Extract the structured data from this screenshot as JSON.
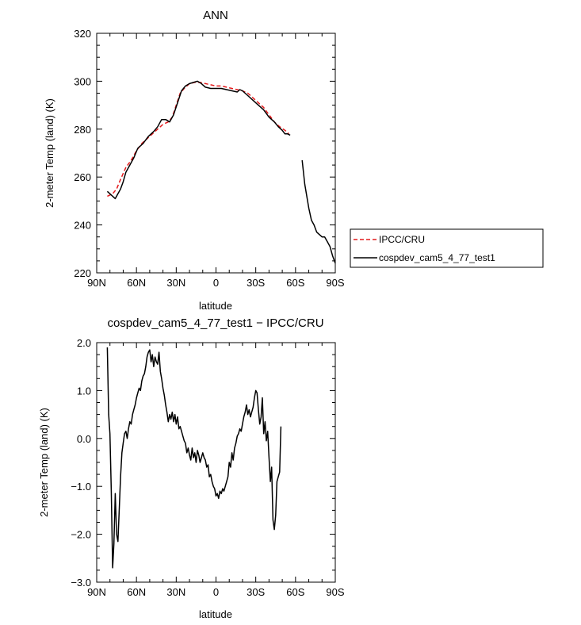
{
  "chart_data": [
    {
      "type": "line",
      "title": "ANN",
      "xlabel": "latitude",
      "ylabel": "2-meter Temp (land) (K)",
      "xlim": [
        90,
        -90
      ],
      "ylim": [
        220,
        320
      ],
      "x_ticks": [
        90,
        60,
        30,
        0,
        -30,
        -60,
        -90
      ],
      "x_tick_labels": [
        "90N",
        "60N",
        "30N",
        "0",
        "30S",
        "60S",
        "90S"
      ],
      "y_ticks": [
        220,
        240,
        260,
        280,
        300,
        320
      ],
      "y_tick_labels": [
        "220",
        "240",
        "260",
        "280",
        "300",
        "320"
      ],
      "grid": false,
      "legend_position": "right",
      "series": [
        {
          "name": "IPCC/CRU",
          "color": "#e41a1c",
          "dash": "dashed",
          "segments": [
            [
              [
                82,
                252
              ],
              [
                78,
                253
              ],
              [
                75,
                255
              ],
              [
                72,
                259
              ],
              [
                68,
                264
              ],
              [
                64,
                267
              ],
              [
                60,
                271
              ],
              [
                56,
                274
              ],
              [
                52,
                276
              ],
              [
                48,
                278
              ],
              [
                44,
                280
              ],
              [
                40,
                282
              ],
              [
                36,
                283
              ],
              [
                33,
                285
              ],
              [
                30,
                290
              ],
              [
                27,
                295
              ],
              [
                24,
                297
              ],
              [
                20,
                299
              ],
              [
                16,
                299.5
              ],
              [
                12,
                299.5
              ],
              [
                8,
                299
              ],
              [
                4,
                298.5
              ],
              [
                0,
                298
              ],
              [
                -4,
                298
              ],
              [
                -8,
                297.5
              ],
              [
                -12,
                297
              ],
              [
                -16,
                296.5
              ],
              [
                -20,
                296
              ],
              [
                -24,
                295
              ],
              [
                -28,
                293
              ],
              [
                -32,
                291
              ],
              [
                -36,
                289
              ],
              [
                -40,
                286
              ],
              [
                -44,
                283
              ],
              [
                -48,
                281
              ],
              [
                -52,
                279.5
              ],
              [
                -55,
                278
              ]
            ]
          ]
        },
        {
          "name": "cospdev_cam5_4_77_test1",
          "color": "#000000",
          "dash": "solid",
          "segments": [
            [
              [
                82,
                254
              ],
              [
                80,
                253
              ],
              [
                78,
                252
              ],
              [
                76,
                251
              ],
              [
                74,
                253
              ],
              [
                72,
                255
              ],
              [
                70,
                258
              ],
              [
                68,
                262
              ],
              [
                65,
                265
              ],
              [
                62,
                268
              ],
              [
                59,
                272
              ],
              [
                55,
                274
              ],
              [
                51,
                277
              ],
              [
                47,
                279
              ],
              [
                44,
                281
              ],
              [
                41,
                284
              ],
              [
                38,
                284
              ],
              [
                35,
                283
              ],
              [
                32,
                286
              ],
              [
                29,
                291
              ],
              [
                26,
                296
              ],
              [
                23,
                298
              ],
              [
                20,
                299
              ],
              [
                17,
                299.5
              ],
              [
                14,
                300
              ],
              [
                11,
                299
              ],
              [
                8,
                297.5
              ],
              [
                4,
                297
              ],
              [
                0,
                297
              ],
              [
                -4,
                297
              ],
              [
                -8,
                296.5
              ],
              [
                -12,
                296
              ],
              [
                -16,
                295.5
              ],
              [
                -18,
                296.5
              ],
              [
                -20,
                296
              ],
              [
                -24,
                294
              ],
              [
                -28,
                292
              ],
              [
                -32,
                290
              ],
              [
                -36,
                288
              ],
              [
                -40,
                285
              ],
              [
                -44,
                283
              ],
              [
                -47,
                281
              ],
              [
                -50,
                279.5
              ],
              [
                -52,
                278
              ],
              [
                -54,
                278
              ],
              [
                -56,
                277.5
              ]
            ],
            [
              [
                -65,
                267
              ],
              [
                -67,
                257
              ],
              [
                -70,
                247
              ],
              [
                -72,
                242
              ],
              [
                -74,
                240
              ],
              [
                -76,
                237
              ],
              [
                -78,
                236
              ],
              [
                -80,
                235
              ],
              [
                -82,
                235
              ],
              [
                -84,
                233
              ],
              [
                -86,
                231
              ],
              [
                -88,
                227
              ],
              [
                -90,
                224
              ]
            ]
          ]
        }
      ]
    },
    {
      "type": "line",
      "title": "cospdev_cam5_4_77_test1 − IPCC/CRU",
      "xlabel": "latitude",
      "ylabel": "2-meter Temp (land) (K)",
      "xlim": [
        90,
        -90
      ],
      "ylim": [
        -3,
        2
      ],
      "x_ticks": [
        90,
        60,
        30,
        0,
        -30,
        -60,
        -90
      ],
      "x_tick_labels": [
        "90N",
        "60N",
        "30N",
        "0",
        "30S",
        "60S",
        "90S"
      ],
      "y_ticks": [
        -3,
        -2,
        -1,
        0,
        1,
        2
      ],
      "y_tick_labels": [
        "−3.0",
        "−2.0",
        "−1.0",
        "0.0",
        "1.0",
        "2.0"
      ],
      "grid": false,
      "series": [
        {
          "color": "#000000",
          "dash": "solid",
          "segments": [
            [
              [
                82,
                1.9
              ],
              [
                81,
                0.5
              ],
              [
                80,
                0.1
              ],
              [
                79,
                -1.1
              ],
              [
                78,
                -2.7
              ],
              [
                77,
                -2.2
              ],
              [
                76,
                -1.15
              ],
              [
                75,
                -2.0
              ],
              [
                74,
                -2.15
              ],
              [
                73,
                -1.5
              ],
              [
                72,
                -0.8
              ],
              [
                71,
                -0.3
              ],
              [
                70,
                -0.1
              ],
              [
                69,
                0.1
              ],
              [
                68,
                0.15
              ],
              [
                67,
                0.0
              ],
              [
                66,
                0.2
              ],
              [
                65,
                0.35
              ],
              [
                64,
                0.3
              ],
              [
                63,
                0.5
              ],
              [
                62,
                0.6
              ],
              [
                61,
                0.7
              ],
              [
                60,
                0.85
              ],
              [
                59,
                0.95
              ],
              [
                58,
                1.05
              ],
              [
                57,
                1.0
              ],
              [
                56,
                1.2
              ],
              [
                55,
                1.3
              ],
              [
                54,
                1.35
              ],
              [
                53,
                1.5
              ],
              [
                52,
                1.7
              ],
              [
                51,
                1.8
              ],
              [
                50,
                1.85
              ],
              [
                49,
                1.6
              ],
              [
                48,
                1.75
              ],
              [
                47,
                1.5
              ],
              [
                46,
                1.7
              ],
              [
                45,
                1.6
              ],
              [
                44,
                1.55
              ],
              [
                43,
                1.8
              ],
              [
                42,
                1.4
              ],
              [
                41,
                1.25
              ],
              [
                40,
                1.05
              ],
              [
                39,
                0.9
              ],
              [
                38,
                0.7
              ],
              [
                37,
                0.55
              ],
              [
                36,
                0.35
              ],
              [
                35,
                0.5
              ],
              [
                34,
                0.4
              ],
              [
                33,
                0.55
              ],
              [
                32,
                0.35
              ],
              [
                31,
                0.5
              ],
              [
                30,
                0.3
              ],
              [
                29,
                0.45
              ],
              [
                28,
                0.2
              ],
              [
                27,
                0.25
              ],
              [
                26,
                0.15
              ],
              [
                25,
                0.05
              ],
              [
                24,
                -0.05
              ],
              [
                23,
                -0.1
              ],
              [
                22,
                -0.3
              ],
              [
                21,
                -0.2
              ],
              [
                20,
                -0.35
              ],
              [
                19,
                -0.45
              ],
              [
                18,
                -0.2
              ],
              [
                17,
                -0.4
              ],
              [
                16,
                -0.3
              ],
              [
                15,
                -0.5
              ],
              [
                14,
                -0.25
              ],
              [
                13,
                -0.35
              ],
              [
                12,
                -0.5
              ],
              [
                11,
                -0.4
              ],
              [
                10,
                -0.3
              ],
              [
                9,
                -0.4
              ],
              [
                8,
                -0.45
              ],
              [
                7,
                -0.6
              ],
              [
                6,
                -0.55
              ],
              [
                5,
                -0.8
              ],
              [
                4,
                -0.75
              ],
              [
                3,
                -0.9
              ],
              [
                2,
                -1.0
              ],
              [
                1,
                -1.05
              ],
              [
                0,
                -1.2
              ],
              [
                -1,
                -1.15
              ],
              [
                -2,
                -1.25
              ],
              [
                -3,
                -1.1
              ],
              [
                -4,
                -1.15
              ],
              [
                -5,
                -1.05
              ],
              [
                -6,
                -1.1
              ],
              [
                -7,
                -1.0
              ],
              [
                -8,
                -0.9
              ],
              [
                -9,
                -0.8
              ],
              [
                -10,
                -0.5
              ],
              [
                -11,
                -0.6
              ],
              [
                -12,
                -0.3
              ],
              [
                -13,
                -0.45
              ],
              [
                -14,
                -0.2
              ],
              [
                -15,
                -0.1
              ],
              [
                -16,
                0.05
              ],
              [
                -17,
                0.1
              ],
              [
                -18,
                0.2
              ],
              [
                -19,
                0.15
              ],
              [
                -20,
                0.3
              ],
              [
                -21,
                0.45
              ],
              [
                -22,
                0.55
              ],
              [
                -23,
                0.7
              ],
              [
                -24,
                0.5
              ],
              [
                -25,
                0.6
              ],
              [
                -26,
                0.45
              ],
              [
                -27,
                0.55
              ],
              [
                -28,
                0.65
              ],
              [
                -29,
                0.85
              ],
              [
                -30,
                1.0
              ],
              [
                -31,
                0.95
              ],
              [
                -32,
                0.6
              ],
              [
                -33,
                0.3
              ],
              [
                -34,
                0.45
              ],
              [
                -35,
                0.85
              ],
              [
                -36,
                0.1
              ],
              [
                -37,
                0.35
              ],
              [
                -38,
                -0.05
              ],
              [
                -39,
                0.15
              ],
              [
                -40,
                -0.4
              ],
              [
                -41,
                -0.9
              ],
              [
                -42,
                -0.6
              ],
              [
                -43,
                -1.7
              ],
              [
                -44,
                -1.9
              ],
              [
                -45,
                -1.6
              ],
              [
                -46,
                -0.9
              ],
              [
                -47,
                -0.8
              ],
              [
                -48,
                -0.7
              ],
              [
                -49,
                0.25
              ]
            ]
          ]
        }
      ]
    }
  ]
}
